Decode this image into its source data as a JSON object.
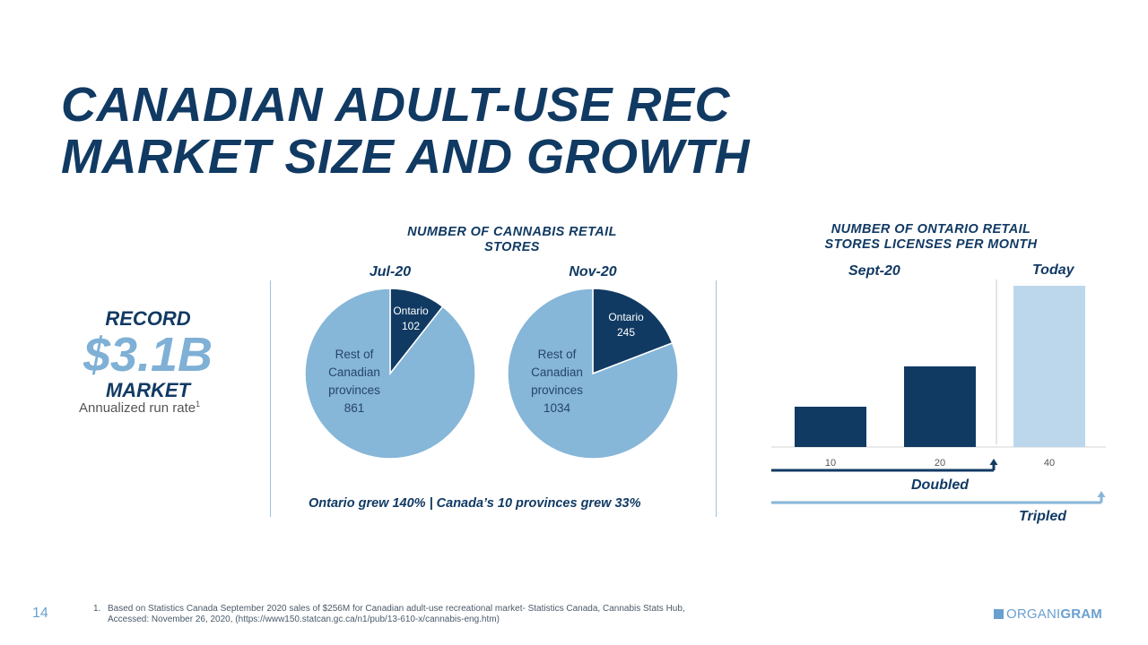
{
  "title": {
    "line1": "CANADIAN ADULT-USE REC",
    "line2": "MARKET SIZE AND GROWTH"
  },
  "market": {
    "record": "RECORD",
    "value": "$3.1B",
    "market": "MARKET",
    "runrate": "Annualized run rate",
    "footnote_mark": "1"
  },
  "pies": {
    "header": "NUMBER OF CANNABIS RETAIL STORES",
    "caption": "Ontario grew 140%  | Canada’s 10 provinces grew 33%"
  },
  "bars": {
    "header": "NUMBER OF ONTARIO RETAIL STORES LICENSES PER MONTH",
    "left_label": "Sept-20",
    "right_label": "Today",
    "doubled": "Doubled",
    "tripled": "Tripled"
  },
  "chart_data": [
    {
      "type": "pie",
      "title": "Jul-20",
      "slices": [
        {
          "label": "Ontario",
          "value": 102
        },
        {
          "label": "Rest of Canadian provinces",
          "value": 861
        }
      ],
      "colors": [
        "#113a63",
        "#86b6d8"
      ]
    },
    {
      "type": "pie",
      "title": "Nov-20",
      "slices": [
        {
          "label": "Ontario",
          "value": 245
        },
        {
          "label": "Rest of Canadian provinces",
          "value": 1034
        }
      ],
      "colors": [
        "#113a63",
        "#86b6d8"
      ]
    },
    {
      "type": "bar",
      "categories": [
        "10",
        "20",
        "40"
      ],
      "values": [
        10,
        20,
        40
      ],
      "colors": [
        "#113a63",
        "#113a63",
        "#bcd7ec"
      ],
      "ylim": [
        0,
        40
      ]
    }
  ],
  "footnote": {
    "num": "1.",
    "line1": "Based on Statistics Canada September 2020 sales of $256M for Canadian adult-use recreational market- Statistics Canada, Cannabis Stats Hub,",
    "line2": "Accessed: November 26, 2020, (https://www150.statcan.gc.ca/n1/pub/13-610-x/cannabis-eng.htm)"
  },
  "page_number": "14",
  "logo": {
    "part1": "ORGANI",
    "part2": "GRAM"
  }
}
